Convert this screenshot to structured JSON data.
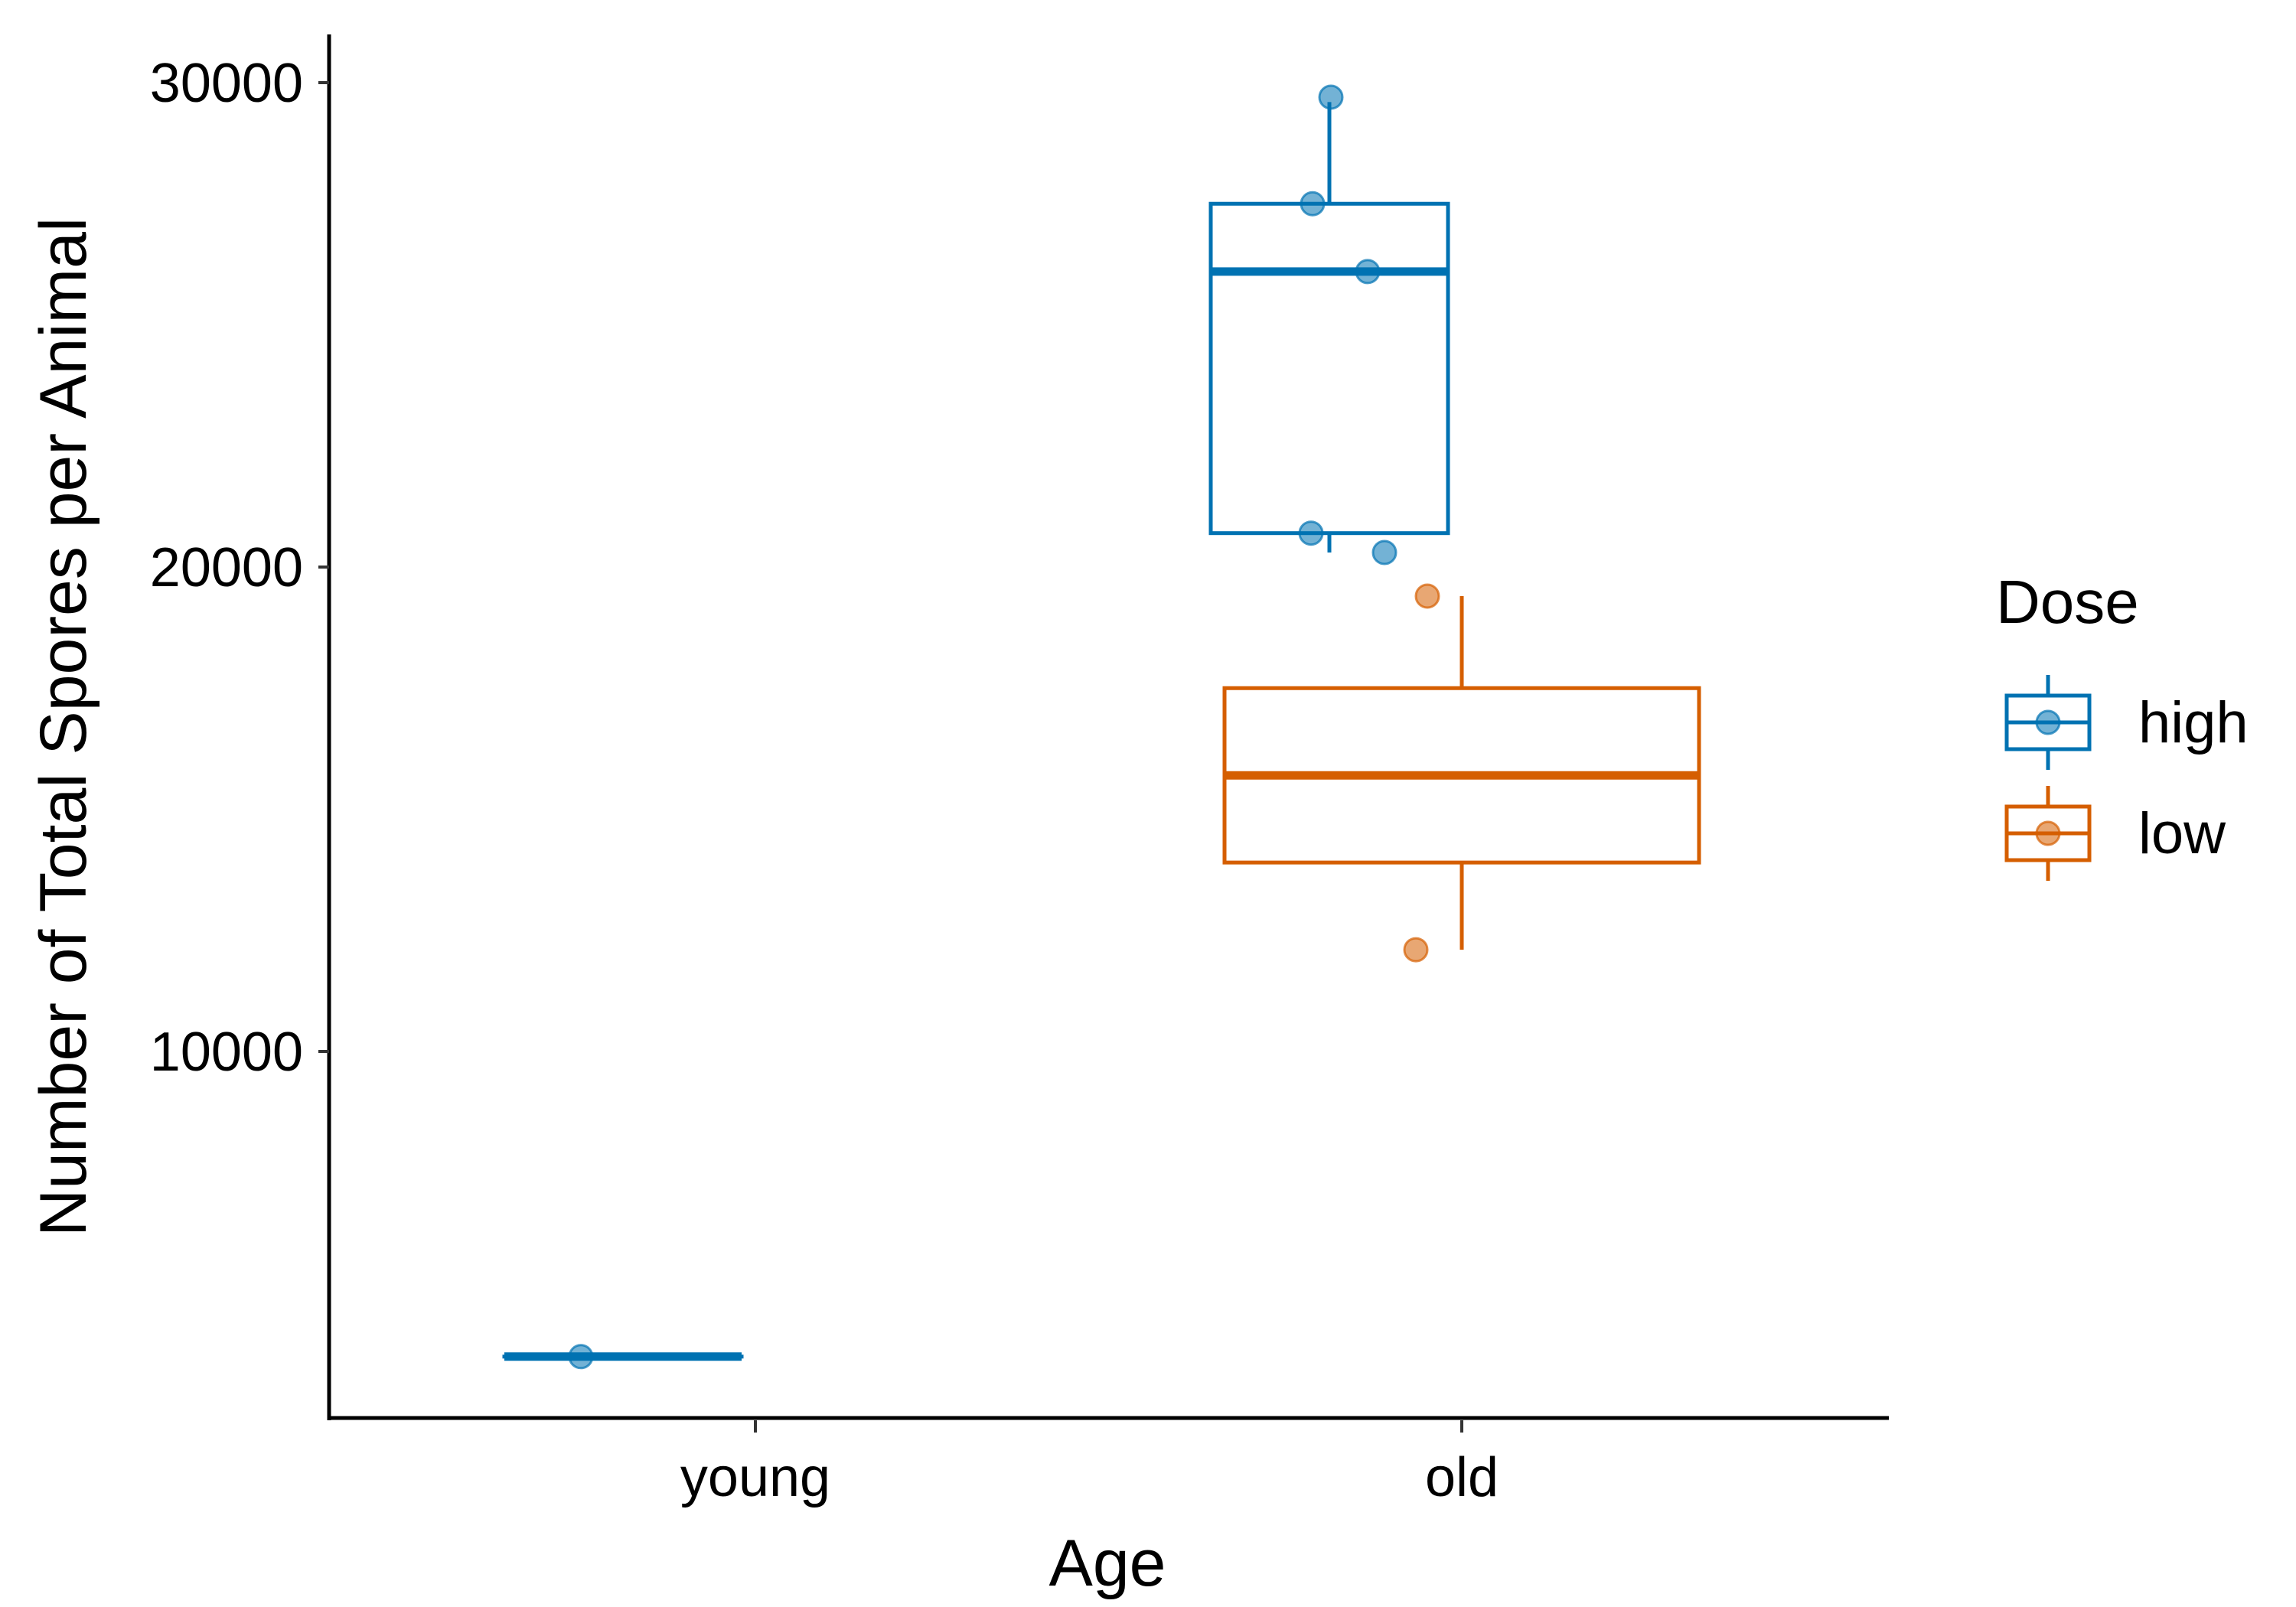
{
  "chart_data": {
    "type": "boxplot",
    "xlabel": "Age",
    "ylabel": "Number of Total Spores per Animal",
    "categories": [
      "young",
      "old"
    ],
    "yticks": [
      10000,
      20000,
      30000
    ],
    "ylim": [
      2500,
      31000
    ],
    "grid": false,
    "legend": {
      "title": "Dose",
      "placement": "right",
      "entries": [
        {
          "label": "high",
          "color": "#0072B2"
        },
        {
          "label": "low",
          "color": "#D55E00"
        }
      ]
    },
    "series": [
      {
        "name": "high",
        "color": "#0072B2",
        "boxes": [
          {
            "category": "young",
            "min": 3700,
            "q1": 3700,
            "median": 3700,
            "q3": 3700,
            "max": 3700
          },
          {
            "category": "old",
            "min": 20300,
            "q1": 20700,
            "median": 26100,
            "q3": 27500,
            "max": 29600
          }
        ],
        "points": [
          {
            "category": "young",
            "y": 3700
          },
          {
            "category": "old",
            "y": 29700
          },
          {
            "category": "old",
            "y": 27500
          },
          {
            "category": "old",
            "y": 26100
          },
          {
            "category": "old",
            "y": 20700
          },
          {
            "category": "old",
            "y": 20300
          }
        ]
      },
      {
        "name": "low",
        "color": "#D55E00",
        "boxes": [
          {
            "category": "old",
            "min": 12100,
            "q1": 13900,
            "median": 15700,
            "q3": 17500,
            "max": 19400
          }
        ],
        "points": [
          {
            "category": "old",
            "y": 19400
          },
          {
            "category": "old",
            "y": 12100
          }
        ]
      }
    ]
  }
}
